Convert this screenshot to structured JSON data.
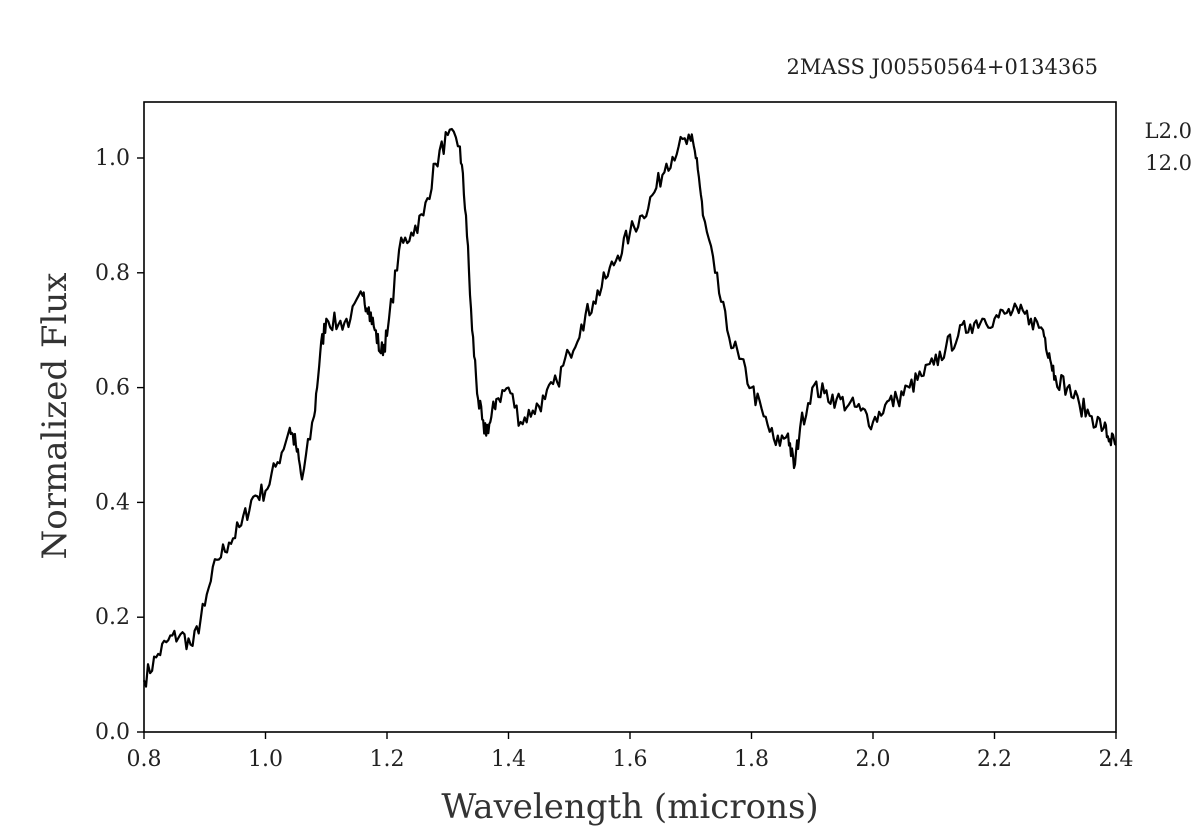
{
  "chart_data": {
    "type": "line",
    "title": "2MASS J00550564+0134365",
    "xlabel": "Wavelength (microns)",
    "ylabel": "Normalized Flux",
    "xlim": [
      0.8,
      2.4
    ],
    "ylim": [
      0.0,
      1.1
    ],
    "x_ticks": [
      "0.8",
      "1.0",
      "1.2",
      "1.4",
      "1.6",
      "1.8",
      "2.0",
      "2.2",
      "2.4"
    ],
    "y_ticks": [
      "0.0",
      "0.2",
      "0.4",
      "0.6",
      "0.8",
      "1.0"
    ],
    "annotations": [
      "L2.0",
      "12.0"
    ],
    "grid": false,
    "line_color": "#000000",
    "series": [
      {
        "x": [
          0.8,
          0.82,
          0.84,
          0.86,
          0.88,
          0.9,
          0.92,
          0.94,
          0.96,
          0.98,
          1.0,
          1.02,
          1.04,
          1.05,
          1.06,
          1.08,
          1.09,
          1.1,
          1.12,
          1.14,
          1.16,
          1.17,
          1.18,
          1.19,
          1.2,
          1.22,
          1.24,
          1.26,
          1.28,
          1.3,
          1.32,
          1.33,
          1.34,
          1.35,
          1.36,
          1.37,
          1.38,
          1.4,
          1.42,
          1.44,
          1.46,
          1.48,
          1.5,
          1.52,
          1.54,
          1.56,
          1.58,
          1.6,
          1.62,
          1.64,
          1.66,
          1.68,
          1.7,
          1.71,
          1.72,
          1.74,
          1.76,
          1.78,
          1.8,
          1.82,
          1.84,
          1.86,
          1.87,
          1.88,
          1.9,
          1.92,
          1.94,
          1.96,
          1.98,
          2.0,
          2.02,
          2.04,
          2.06,
          2.08,
          2.1,
          2.12,
          2.14,
          2.16,
          2.18,
          2.2,
          2.22,
          2.24,
          2.26,
          2.28,
          2.29,
          2.3,
          2.32,
          2.34,
          2.36,
          2.38,
          2.39,
          2.4
        ],
        "y": [
          0.09,
          0.13,
          0.16,
          0.17,
          0.15,
          0.22,
          0.3,
          0.33,
          0.36,
          0.41,
          0.42,
          0.47,
          0.53,
          0.5,
          0.44,
          0.55,
          0.66,
          0.72,
          0.71,
          0.72,
          0.76,
          0.74,
          0.7,
          0.66,
          0.69,
          0.84,
          0.87,
          0.9,
          0.99,
          1.04,
          1.02,
          0.9,
          0.7,
          0.58,
          0.52,
          0.54,
          0.58,
          0.6,
          0.54,
          0.56,
          0.58,
          0.61,
          0.66,
          0.71,
          0.75,
          0.79,
          0.83,
          0.87,
          0.9,
          0.94,
          0.99,
          1.02,
          1.03,
          1.0,
          0.9,
          0.8,
          0.7,
          0.65,
          0.6,
          0.55,
          0.5,
          0.52,
          0.46,
          0.53,
          0.6,
          0.59,
          0.58,
          0.57,
          0.56,
          0.54,
          0.57,
          0.58,
          0.6,
          0.62,
          0.64,
          0.67,
          0.69,
          0.71,
          0.72,
          0.72,
          0.73,
          0.73,
          0.72,
          0.7,
          0.66,
          0.62,
          0.6,
          0.57,
          0.55,
          0.53,
          0.51,
          0.5
        ]
      }
    ]
  }
}
